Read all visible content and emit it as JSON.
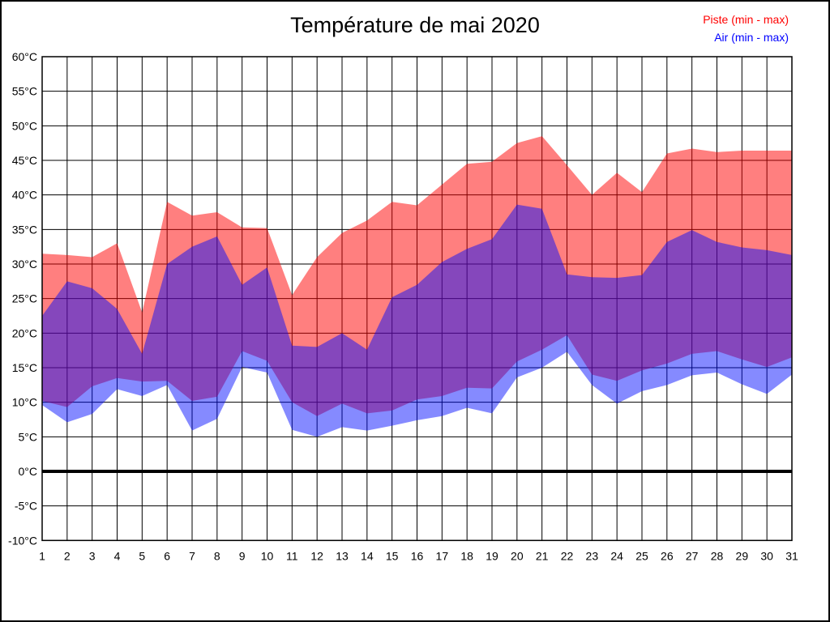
{
  "title": "Température de mai 2020",
  "legend": {
    "piste": {
      "label": "Piste (min - max)",
      "color": "#ff0000"
    },
    "air": {
      "label": "Air (min - max)",
      "color": "#0000ff"
    }
  },
  "chart_data": {
    "type": "area",
    "title": "Température de mai 2020",
    "x": [
      1,
      2,
      3,
      4,
      5,
      6,
      7,
      8,
      9,
      10,
      11,
      12,
      13,
      14,
      15,
      16,
      17,
      18,
      19,
      20,
      21,
      22,
      23,
      24,
      25,
      26,
      27,
      28,
      29,
      30,
      31
    ],
    "series": [
      {
        "name": "Piste max",
        "values": [
          31.5,
          31.3,
          31,
          33,
          23,
          39,
          37,
          37.5,
          35.3,
          35.2,
          25.5,
          31,
          34.5,
          36.3,
          39,
          38.5,
          41.5,
          44.5,
          44.8,
          47.5,
          48.5,
          44.3,
          40,
          43.2,
          40.4,
          46,
          46.7,
          46.2,
          46.4,
          46.4,
          46.4
        ]
      },
      {
        "name": "Piste min",
        "values": [
          10.2,
          9.3,
          12.3,
          13.5,
          13,
          13.1,
          10.2,
          10.8,
          17.4,
          16,
          10,
          8,
          9.8,
          8.4,
          8.8,
          10.4,
          10.9,
          12.1,
          12,
          15.9,
          17.6,
          19.7,
          14,
          13.1,
          14.6,
          15.6,
          17,
          17.4,
          16.2,
          15.1,
          16.5
        ]
      },
      {
        "name": "Air max",
        "values": [
          22.5,
          27.5,
          26.5,
          23.5,
          17,
          30,
          32.5,
          34,
          27,
          29.5,
          18.2,
          18,
          20,
          17.6,
          25.2,
          27,
          30.3,
          32.2,
          33.6,
          38.6,
          38,
          28.5,
          28.1,
          28,
          28.4,
          33.2,
          34.9,
          33.2,
          32.4,
          32,
          31.3
        ]
      },
      {
        "name": "Air min",
        "values": [
          9.6,
          7.1,
          8.3,
          11.9,
          10.9,
          12.5,
          5.9,
          7.6,
          15.1,
          14.3,
          6,
          5,
          6.4,
          5.9,
          6.6,
          7.4,
          8,
          9.2,
          8.4,
          13.6,
          15,
          17.3,
          12.5,
          9.8,
          11.6,
          12.5,
          13.9,
          14.3,
          12.6,
          11.2,
          14
        ]
      }
    ],
    "bands": [
      {
        "legend": "Piste (min - max)",
        "upper": 0,
        "lower": 1,
        "fill": "rgba(255,0,0,0.5)"
      },
      {
        "legend": "Air (min - max)",
        "upper": 2,
        "lower": 3,
        "fill": "rgba(0,10,255,0.48)"
      }
    ],
    "ylim": [
      -10,
      60
    ],
    "ytick_step": 5,
    "ytick_suffix": "°C",
    "grid": true,
    "zero_line": true,
    "legend_position": "top-right",
    "axis_color": "#000000",
    "background": "#ffffff"
  }
}
